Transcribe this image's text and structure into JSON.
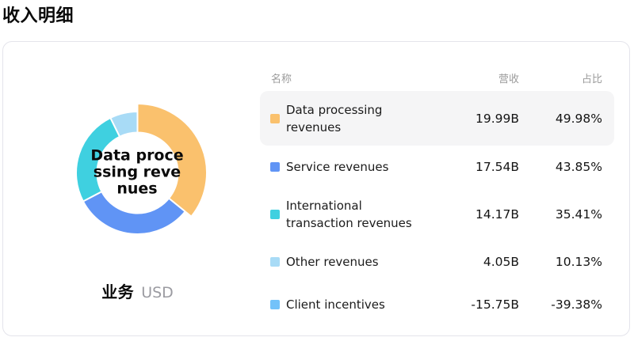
{
  "page": {
    "title": "收入明细"
  },
  "table": {
    "headers": {
      "name": "名称",
      "revenue": "营收",
      "share": "占比"
    }
  },
  "chart_data": {
    "type": "pie",
    "donut": true,
    "title": "收入明细",
    "center_label": "Data processing revenues",
    "center_label_lines": [
      "Data proce",
      "ssing reve",
      "nues"
    ],
    "footer": {
      "dimension": "业务",
      "unit": "USD"
    },
    "legend_position": "none",
    "highlighted_index": 0,
    "geometry": {
      "cx": 169.5,
      "cy": 165.5,
      "inner_radius": 51,
      "outer_radius": 77.5,
      "highlight_outer_radius": 87.5,
      "border_color": "#ffffff",
      "border_width": 2
    },
    "series": [
      {
        "name": "Data processing revenues",
        "value": 19.99,
        "revenue": "19.99B",
        "share": "49.98%",
        "color": "#FAC16D",
        "in_donut": true
      },
      {
        "name": "Service revenues",
        "value": 17.54,
        "revenue": "17.54B",
        "share": "43.85%",
        "color": "#6094F5",
        "in_donut": true
      },
      {
        "name": "International transaction revenues",
        "value": 14.17,
        "revenue": "14.17B",
        "share": "35.41%",
        "color": "#3FD0E0",
        "in_donut": true
      },
      {
        "name": "Other revenues",
        "value": 4.05,
        "revenue": "4.05B",
        "share": "10.13%",
        "color": "#A8DBF6",
        "in_donut": true
      },
      {
        "name": "Client incentives",
        "value": -15.75,
        "revenue": "-15.75B",
        "share": "-39.38%",
        "color": "#73C2F9",
        "in_donut": false
      }
    ]
  },
  "colors": {
    "row_highlight_bg": "#F5F5F6",
    "card_border": "#E4E4EB",
    "header_text": "#9B9B9B",
    "muted_text": "#9B9BA1",
    "text": "#111111"
  }
}
